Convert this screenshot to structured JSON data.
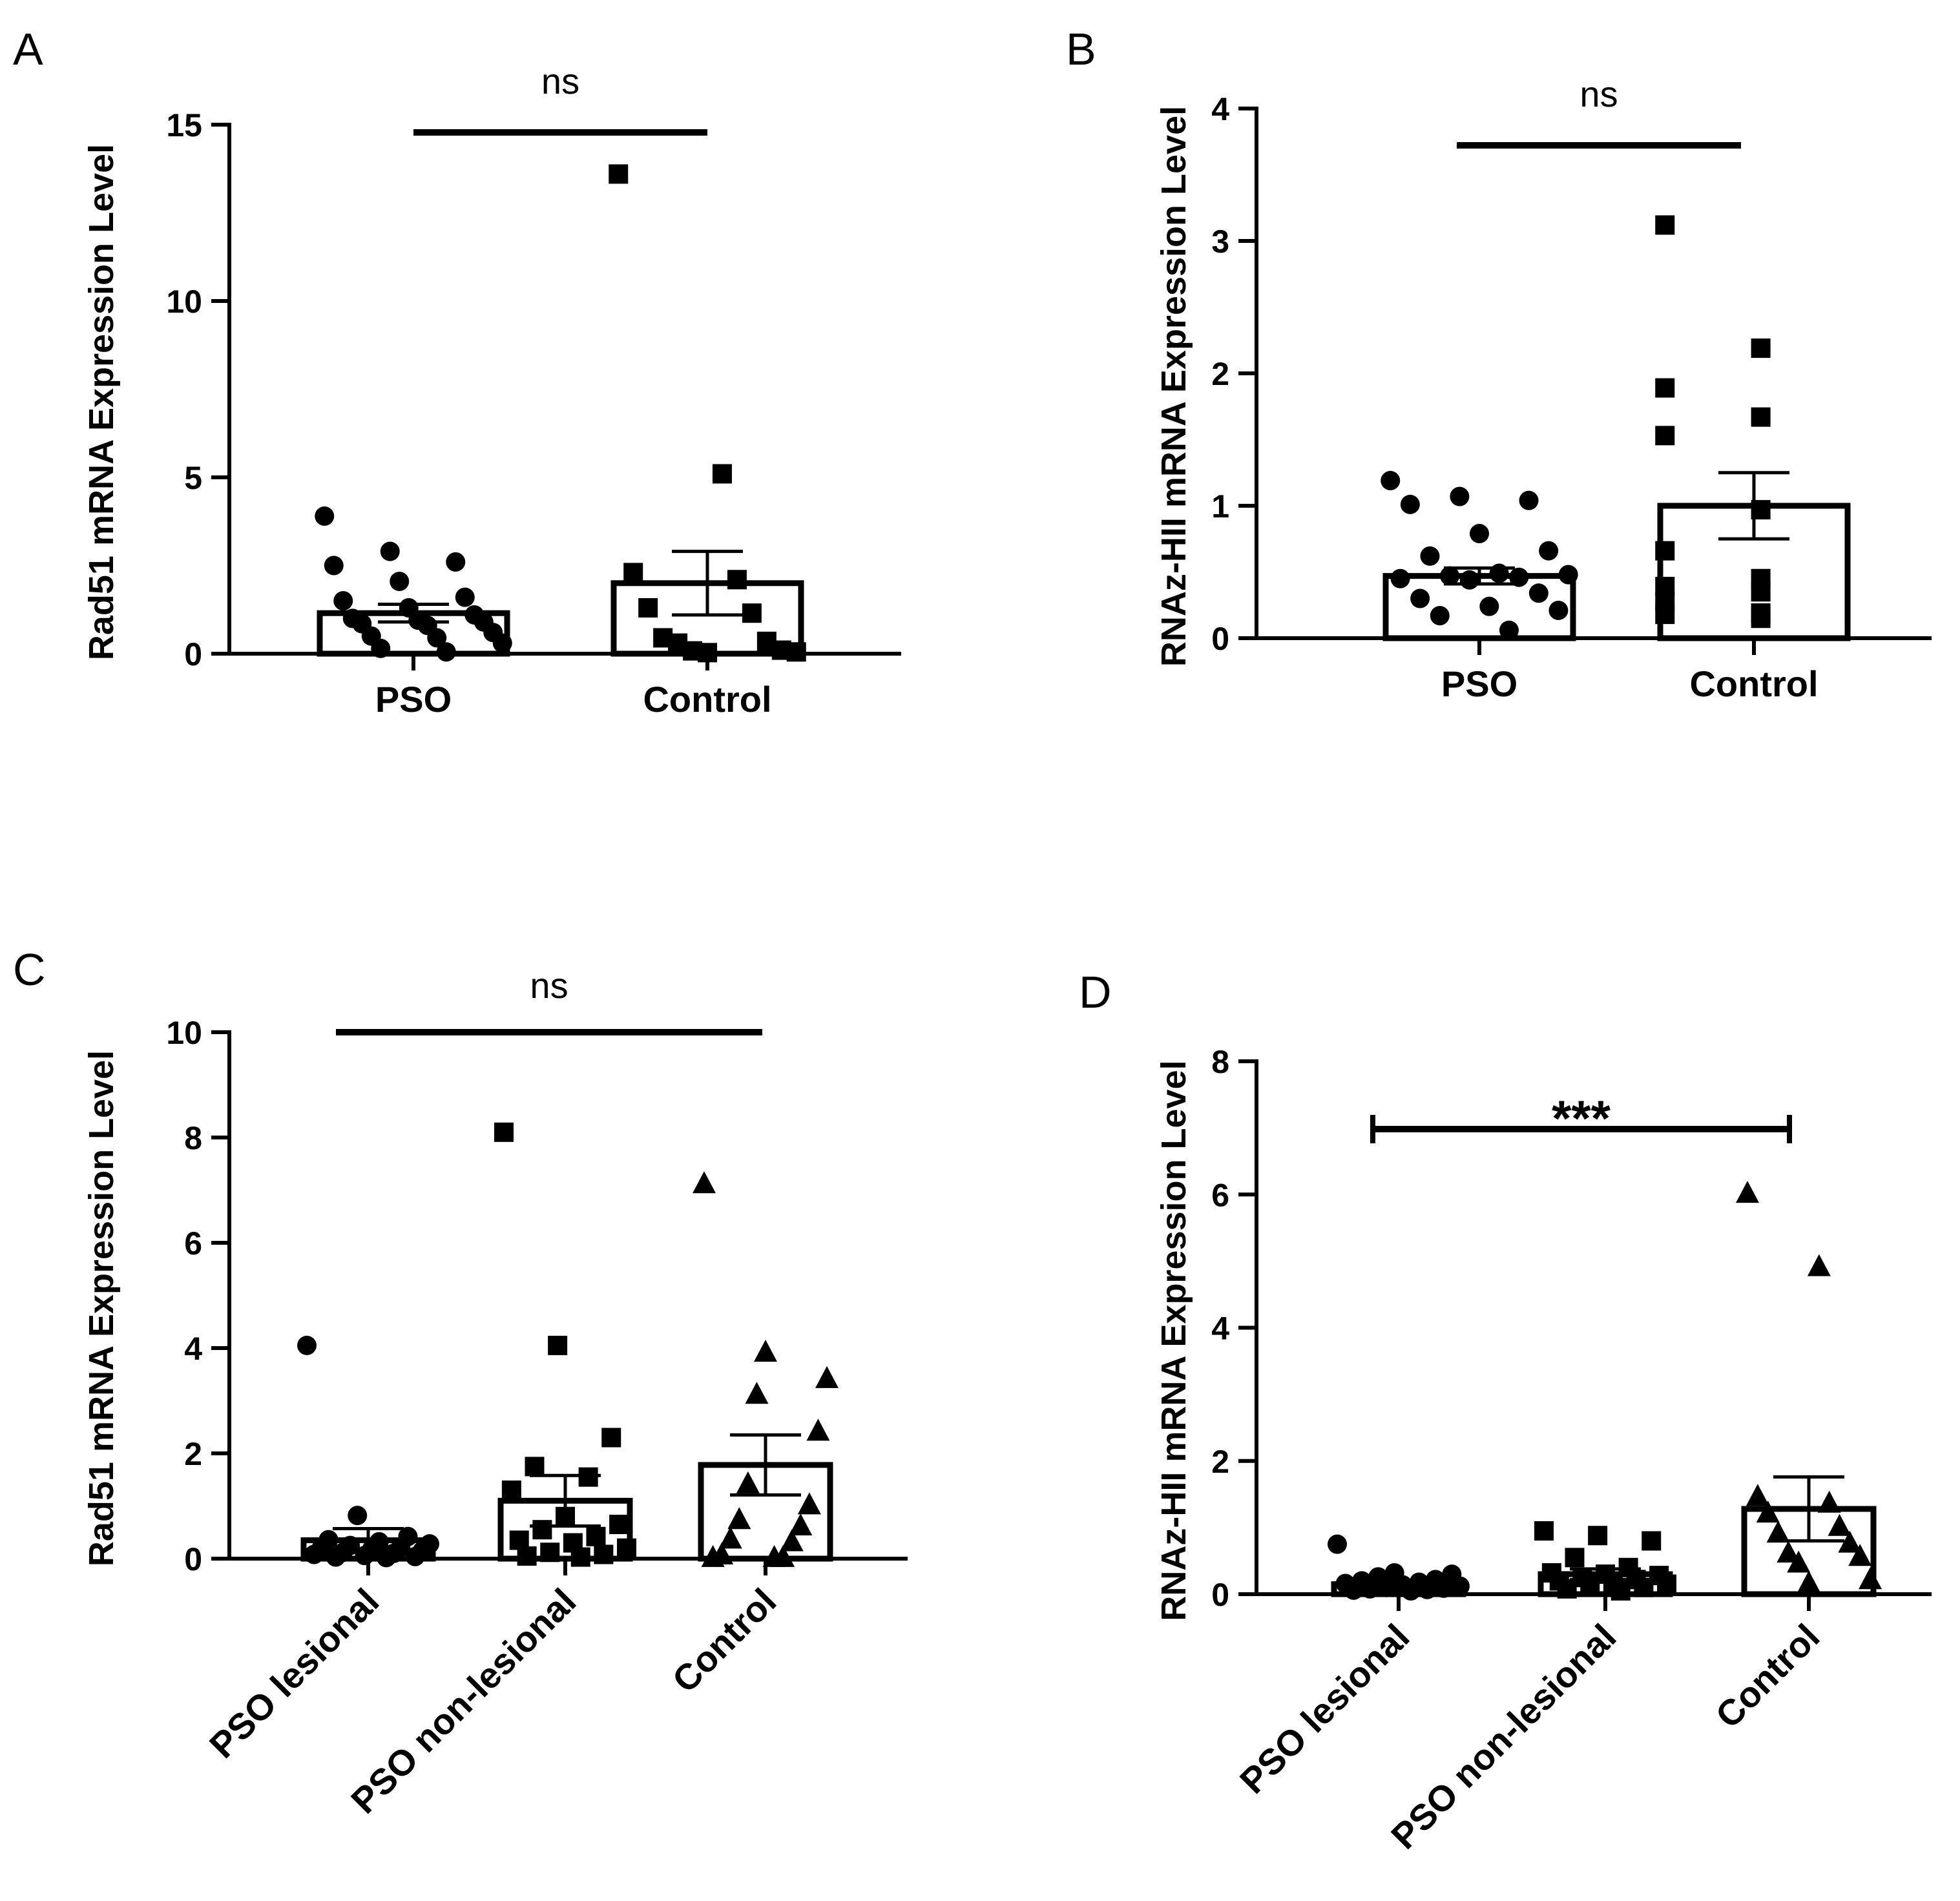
{
  "chart_data": [
    {
      "panel": "A",
      "type": "bar",
      "ylabel": "Rad51 mRNA Expression Level",
      "ylim": [
        0,
        15
      ],
      "yticks": [
        "0",
        "5",
        "10",
        "15"
      ],
      "categories": [
        "PSO",
        "Control"
      ],
      "significance": "ns",
      "bars": [
        {
          "name": "PSO",
          "mean": 1.15,
          "sem": 0.25,
          "marker": "circle",
          "points": [
            3.9,
            2.9,
            2.6,
            2.5,
            2.05,
            1.6,
            1.5,
            1.3,
            1.1,
            1.0,
            0.95,
            0.9,
            0.85,
            0.8,
            0.6,
            0.5,
            0.45,
            0.3,
            0.15,
            0.05
          ]
        },
        {
          "name": "Control",
          "mean": 2.0,
          "sem": 0.9,
          "marker": "square",
          "points": [
            13.6,
            5.1,
            2.3,
            2.1,
            1.3,
            1.15,
            0.45,
            0.35,
            0.3,
            0.1,
            0.08,
            0.05,
            0.03
          ]
        }
      ]
    },
    {
      "panel": "B",
      "type": "bar",
      "ylabel": "RNAz-HII mRNA Expression  Level",
      "ylim": [
        0,
        4
      ],
      "yticks": [
        "0",
        "1",
        "2",
        "3",
        "4"
      ],
      "categories": [
        "PSO",
        "Control"
      ],
      "significance": "ns",
      "bars": [
        {
          "name": "PSO",
          "mean": 0.47,
          "sem": 0.06,
          "marker": "circle",
          "points": [
            1.19,
            1.07,
            1.04,
            1.01,
            0.79,
            0.66,
            0.62,
            0.49,
            0.48,
            0.47,
            0.46,
            0.45,
            0.44,
            0.34,
            0.3,
            0.24,
            0.21,
            0.17,
            0.06
          ]
        },
        {
          "name": "Control",
          "mean": 1.0,
          "sem": 0.25,
          "marker": "square",
          "points": [
            3.12,
            2.19,
            1.89,
            1.67,
            1.53,
            0.97,
            0.66,
            0.45,
            0.39,
            0.35,
            0.28,
            0.19,
            0.18,
            0.15
          ]
        }
      ]
    },
    {
      "panel": "C",
      "type": "bar",
      "ylabel": "Rad51 mRNA Expression Level",
      "ylim": [
        0,
        10
      ],
      "yticks": [
        "0",
        "2",
        "4",
        "6",
        "8",
        "10"
      ],
      "categories": [
        "PSO lesional",
        "PSO non-lesional",
        "Control"
      ],
      "significance": "ns",
      "bars": [
        {
          "name": "PSO lesional",
          "mean": 0.35,
          "sem": 0.22,
          "marker": "circle",
          "points": [
            4.05,
            0.82,
            0.42,
            0.36,
            0.32,
            0.28,
            0.25,
            0.22,
            0.2,
            0.18,
            0.15,
            0.12,
            0.1,
            0.08,
            0.06,
            0.04,
            0.03,
            0.02
          ]
        },
        {
          "name": "PSO non-lesional",
          "mean": 1.1,
          "sem": 0.48,
          "marker": "square",
          "points": [
            8.1,
            4.05,
            2.3,
            1.75,
            1.55,
            1.3,
            0.8,
            0.65,
            0.55,
            0.42,
            0.35,
            0.3,
            0.2,
            0.12,
            0.08,
            0.05,
            0.03
          ]
        },
        {
          "name": "Control",
          "mean": 1.78,
          "sem": 0.57,
          "marker": "triangle",
          "points": [
            7.1,
            3.9,
            3.4,
            3.1,
            2.4,
            1.4,
            1.0,
            0.72,
            0.6,
            0.35,
            0.3,
            0.05,
            0.0,
            0.0,
            0.0
          ]
        }
      ]
    },
    {
      "panel": "D",
      "type": "bar",
      "ylabel": "RNAz-HII mRNA Expression  Level",
      "ylim": [
        0,
        8
      ],
      "yticks": [
        "0",
        "2",
        "4",
        "6",
        "8"
      ],
      "categories": [
        "PSO lesional",
        "PSO non-lesional",
        "Control"
      ],
      "significance": "***",
      "bars": [
        {
          "name": "PSO lesional",
          "mean": 0.15,
          "sem": 0.04,
          "marker": "circle",
          "points": [
            0.75,
            0.32,
            0.3,
            0.26,
            0.22,
            0.2,
            0.18,
            0.16,
            0.14,
            0.12,
            0.1,
            0.09,
            0.08,
            0.07,
            0.06,
            0.05
          ]
        },
        {
          "name": "PSO non-lesional",
          "mean": 0.3,
          "sem": 0.08,
          "marker": "square",
          "points": [
            0.95,
            0.88,
            0.8,
            0.55,
            0.4,
            0.32,
            0.3,
            0.28,
            0.25,
            0.22,
            0.2,
            0.18,
            0.15,
            0.12,
            0.1,
            0.08,
            0.05
          ]
        },
        {
          "name": "Control",
          "mean": 1.28,
          "sem": 0.48,
          "marker": "triangle",
          "points": [
            6.0,
            4.9,
            1.45,
            1.35,
            1.2,
            1.0,
            0.9,
            0.75,
            0.6,
            0.55,
            0.45,
            0.2,
            0.15
          ]
        }
      ]
    }
  ]
}
